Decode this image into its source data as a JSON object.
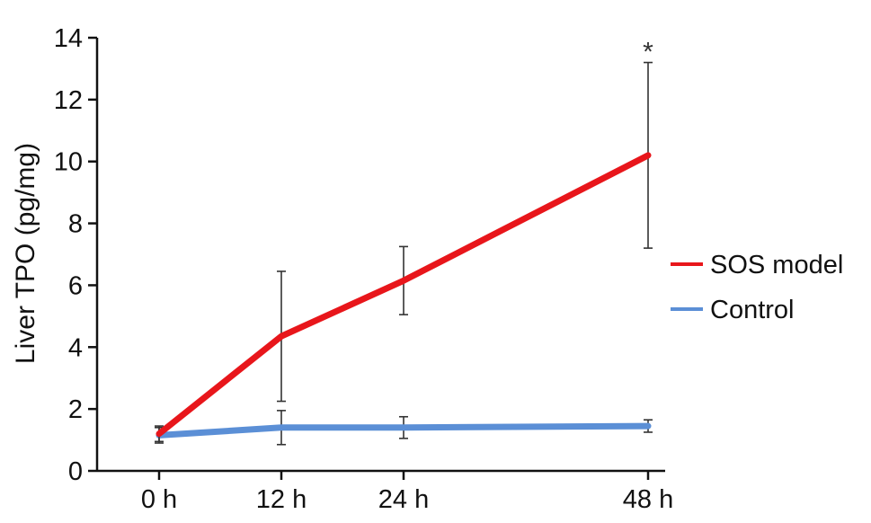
{
  "chart_data": {
    "type": "line",
    "ylabel": "Liver TPO (pg/mg)",
    "xlabel": "",
    "x": [
      0,
      12,
      24,
      48
    ],
    "x_tick_labels": [
      "0 h",
      "12 h",
      "24 h",
      "48 h"
    ],
    "ylim": [
      0,
      14
    ],
    "y_ticks": [
      0,
      2,
      4,
      6,
      8,
      10,
      12,
      14
    ],
    "grid": false,
    "legend_position": "right",
    "series": [
      {
        "name": "SOS model",
        "color": "#e8161b",
        "values": [
          1.2,
          4.35,
          6.15,
          10.2
        ],
        "error": [
          0.25,
          2.1,
          1.1,
          3.0
        ]
      },
      {
        "name": "Control",
        "color": "#5b8fd6",
        "values": [
          1.15,
          1.4,
          1.4,
          1.45
        ],
        "error": [
          0.25,
          0.55,
          0.35,
          0.2
        ]
      }
    ],
    "annotations": [
      {
        "text": "*",
        "x": 48,
        "y": 13.2
      }
    ]
  }
}
